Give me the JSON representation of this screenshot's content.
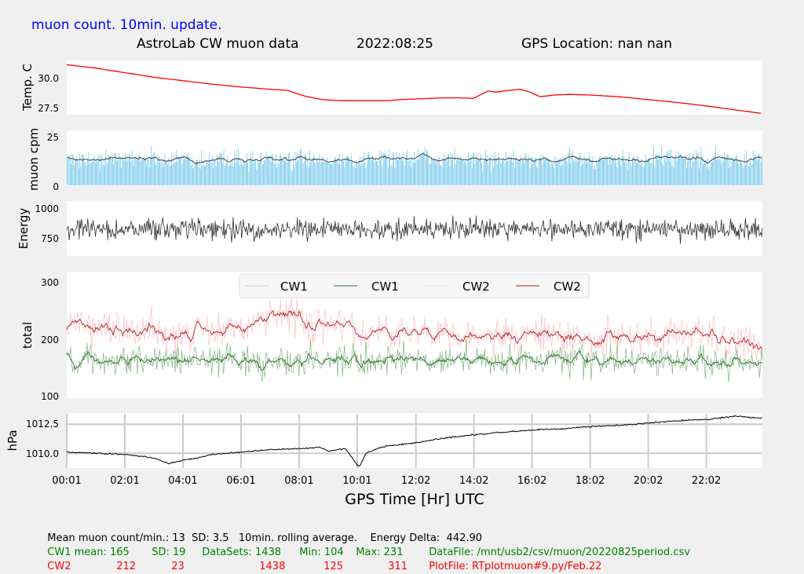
{
  "header": {
    "update_label": "muon count.  10min. update.",
    "station_title": "AstroLab CW muon data",
    "date": "2022:08:25",
    "gps_location": "GPS Location: nan   nan"
  },
  "colors": {
    "background": "#f0f0f0",
    "panel": "#ffffff",
    "blue_text": "#0000ff",
    "temp_line": "#ff0000",
    "muon_bars": "#4fb8e6",
    "energy_line": "#333333",
    "cw1_raw": "#7fb77f",
    "cw1_avg": "#336633",
    "cw2_raw": "#ffbfc8",
    "cw2_avg": "#b22222",
    "footer_green": "#008000",
    "footer_red": "#ff0000"
  },
  "chart_data": [
    {
      "type": "line",
      "ylabel": "Temp. C",
      "yticks": [
        "30.0",
        "27.5"
      ],
      "ylim": [
        27.2,
        31.8
      ],
      "x_hours": [
        0,
        1,
        2,
        3,
        4,
        5,
        6,
        7,
        7.6,
        8.2,
        8.8,
        9.4,
        10,
        10.5,
        11,
        11.5,
        12,
        12.5,
        13,
        13.5,
        14,
        14.5,
        14.8,
        15.2,
        15.6,
        15.9,
        16.3,
        16.8,
        17.3,
        18,
        19,
        20,
        21,
        22,
        23,
        23.9
      ],
      "values": [
        31.5,
        31.2,
        30.8,
        30.4,
        30.1,
        29.8,
        29.55,
        29.35,
        29.25,
        28.75,
        28.45,
        28.35,
        28.35,
        28.35,
        28.35,
        28.45,
        28.5,
        28.55,
        28.6,
        28.6,
        28.55,
        29.2,
        29.1,
        29.25,
        29.35,
        29.15,
        28.7,
        28.85,
        28.9,
        28.85,
        28.7,
        28.45,
        28.2,
        27.9,
        27.55,
        27.25
      ]
    },
    {
      "type": "bar",
      "ylabel": "muon cpm",
      "yticks": [
        "25",
        "0"
      ],
      "ylim": [
        0,
        27
      ],
      "mean": 13,
      "sd": 3.5,
      "series": [
        {
          "values_summary": "per-minute counts, mean 13, sd 3.5, max ~27"
        },
        {
          "values_summary": "10min. rolling average, ~12–14 cpm"
        }
      ]
    },
    {
      "type": "line",
      "ylabel": "Energy",
      "yticks": [
        "1000",
        "750"
      ],
      "ylim": [
        630,
        1040
      ],
      "range": [
        650,
        1030
      ],
      "typical": 830
    },
    {
      "type": "line",
      "ylabel": "total",
      "yticks": [
        "300",
        "200",
        "100"
      ],
      "ylim": [
        100,
        320
      ],
      "legend": [
        "CW1",
        "CW1",
        "CW2",
        "CW2"
      ],
      "legend_position": "top",
      "series": [
        {
          "name": "CW1",
          "mean": 165,
          "sd": 19,
          "min": 104,
          "max": 231
        },
        {
          "name": "CW1",
          "kind": "rolling average"
        },
        {
          "name": "CW2",
          "mean": 212,
          "sd": 23,
          "min": 125,
          "max": 311
        },
        {
          "name": "CW2",
          "kind": "rolling average",
          "x_hours": [
            0,
            2,
            4,
            6,
            7,
            7.5,
            8,
            9,
            10,
            12,
            14,
            16,
            18,
            20,
            22,
            24
          ],
          "values": [
            225,
            215,
            210,
            220,
            245,
            255,
            240,
            220,
            210,
            212,
            210,
            212,
            205,
            210,
            210,
            195
          ]
        }
      ]
    },
    {
      "type": "line",
      "ylabel": "hPa",
      "yticks": [
        "1012.5",
        "1010.0"
      ],
      "ylim": [
        1008.8,
        1013.4
      ],
      "grid": true,
      "x_hours": [
        0,
        1,
        2,
        3,
        3.5,
        4,
        4.5,
        5,
        6,
        7,
        8,
        8.7,
        9,
        9.6,
        10,
        10.1,
        10.3,
        10.6,
        11,
        12,
        13,
        14,
        15,
        16,
        17,
        18,
        19,
        20,
        21,
        22,
        23,
        24
      ],
      "values": [
        1010.1,
        1010.0,
        1009.9,
        1009.6,
        1009.1,
        1009.4,
        1009.6,
        1009.9,
        1010.1,
        1010.3,
        1010.4,
        1010.5,
        1010.2,
        1010.4,
        1009.0,
        1008.9,
        1010.0,
        1010.3,
        1010.6,
        1010.9,
        1011.3,
        1011.6,
        1011.8,
        1012.0,
        1012.1,
        1012.3,
        1012.4,
        1012.6,
        1012.8,
        1012.9,
        1013.2,
        1013.0
      ]
    }
  ],
  "xaxis": {
    "title": "GPS Time  [Hr] UTC",
    "ticks": [
      "00:01",
      "02:01",
      "04:01",
      "06:01",
      "08:01",
      "10:01",
      "12:02",
      "14:02",
      "16:02",
      "18:02",
      "20:02",
      "22:02"
    ],
    "tick_hours": [
      0,
      2,
      4,
      6,
      8,
      10,
      12.02,
      14.02,
      16.02,
      18.02,
      20.02,
      22.02
    ],
    "range_hours": [
      0,
      23.95
    ]
  },
  "footer": {
    "line1": "Mean muon count/min.: 13  SD: 3.5   10min. rolling average.    Energy Delta:  442.90",
    "cw1": {
      "label": "CW1 mean: 165",
      "sd": "SD: 19",
      "datasets": "DataSets: 1438",
      "min": "Min: 104",
      "max": "Max: 231",
      "file": "DataFile: /mnt/usb2/csv/muon/20220825period.csv"
    },
    "cw2": {
      "label": "CW2",
      "mean": "212",
      "sd": "23",
      "datasets": "1438",
      "min": "125",
      "max": "311",
      "file": "PlotFile: RTplotmuon#9.py/Feb.22"
    }
  }
}
